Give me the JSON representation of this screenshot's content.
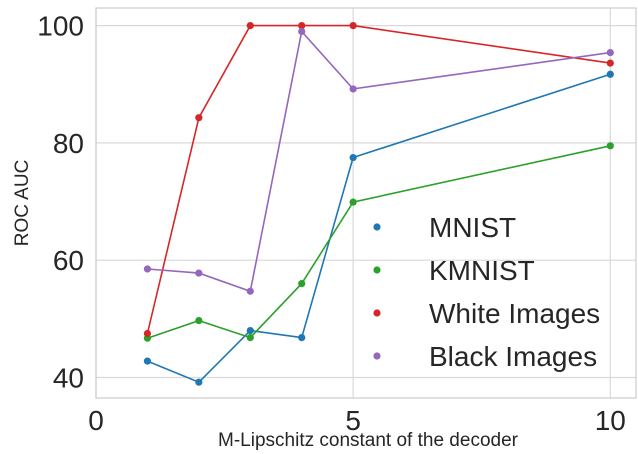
{
  "chart_data": {
    "type": "line",
    "title": "",
    "xlabel": "M-Lipschitz constant of the decoder",
    "ylabel": "ROC AUC",
    "xlim": [
      0,
      10.5
    ],
    "ylim": [
      36.5,
      103
    ],
    "xticks": [
      0,
      5,
      10
    ],
    "yticks": [
      40,
      60,
      80,
      100
    ],
    "grid": true,
    "legend_placement": "lower right",
    "x": [
      1,
      2,
      3,
      4,
      5,
      10
    ],
    "series": [
      {
        "name": "MNIST",
        "color": "#1f77b4",
        "values": [
          42.8,
          39.2,
          48.0,
          46.8,
          77.5,
          91.7
        ]
      },
      {
        "name": "KMNIST",
        "color": "#2ca02c",
        "values": [
          46.7,
          49.7,
          46.8,
          56.0,
          69.9,
          79.5
        ]
      },
      {
        "name": "White Images",
        "color": "#d62728",
        "values": [
          47.5,
          84.3,
          100.0,
          100.0,
          100.0,
          93.6
        ]
      },
      {
        "name": "Black Images",
        "color": "#9467bd",
        "values": [
          58.5,
          57.8,
          54.7,
          99.0,
          89.2,
          95.4
        ]
      }
    ]
  }
}
